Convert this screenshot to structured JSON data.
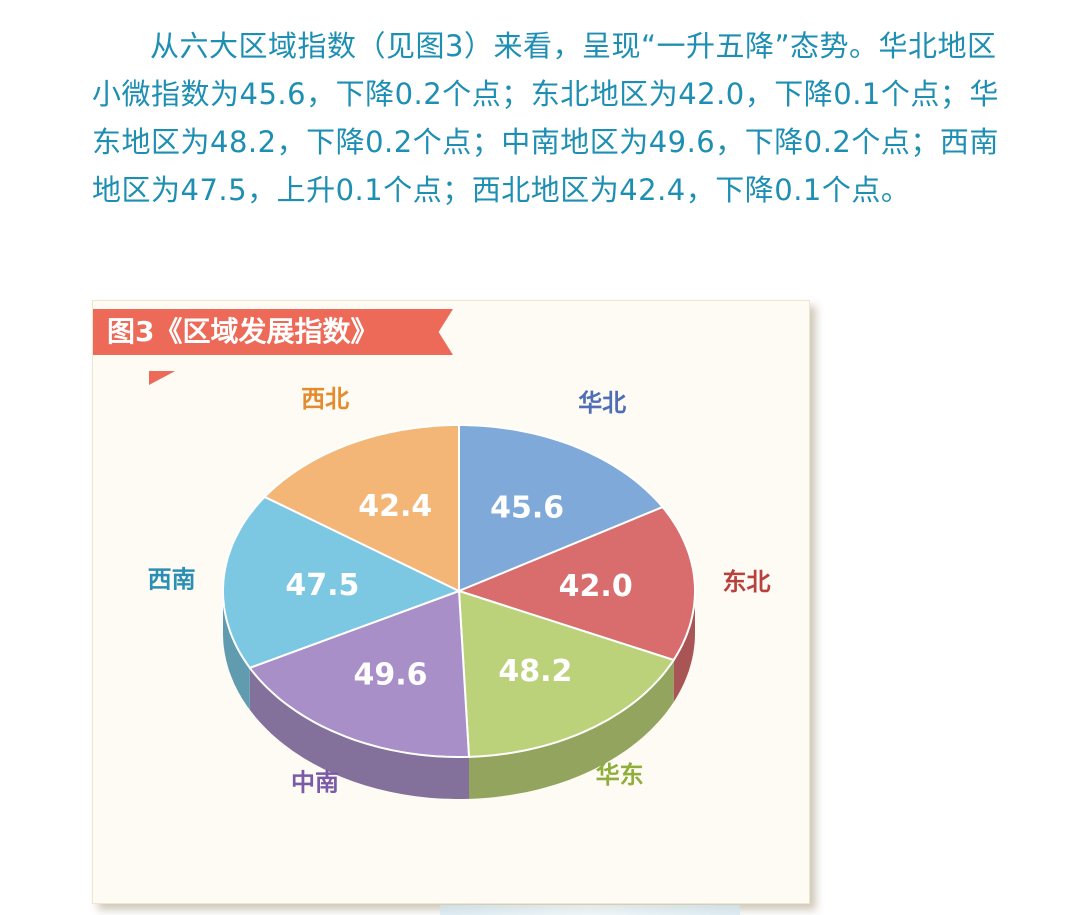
{
  "article": {
    "text": "从六大区域指数（见图3）来看，呈现“一升五降”态势。华北地区小微指数为45.6，下降0.2个点；东北地区为42.0，下降0.1个点；华东地区为48.2，下降0.2个点；中南地区为49.6，下降0.2个点；西南地区为47.5，上升0.1个点；西北地区为42.4，下降0.1个点。"
  },
  "figure": {
    "title": "图3《区域发展指数》"
  },
  "chart_data": {
    "type": "pie",
    "title": "图3《区域发展指数》",
    "style": "3d-exploded",
    "categories": [
      "华北",
      "东北",
      "华东",
      "中南",
      "西南",
      "西北"
    ],
    "values": [
      45.6,
      42.0,
      48.2,
      49.6,
      47.5,
      42.4
    ],
    "value_labels": [
      "45.6",
      "42.0",
      "48.2",
      "49.6",
      "47.5",
      "42.4"
    ],
    "colors": [
      "#7fa9d9",
      "#d96d6d",
      "#bcd27a",
      "#a88fc7",
      "#7cc7e2",
      "#f3b676"
    ],
    "label_colors": [
      "#4e6fb5",
      "#b8403f",
      "#8fae3b",
      "#7b5aa8",
      "#2b8fb5",
      "#e48b2e"
    ],
    "legend": "labels-outside"
  }
}
